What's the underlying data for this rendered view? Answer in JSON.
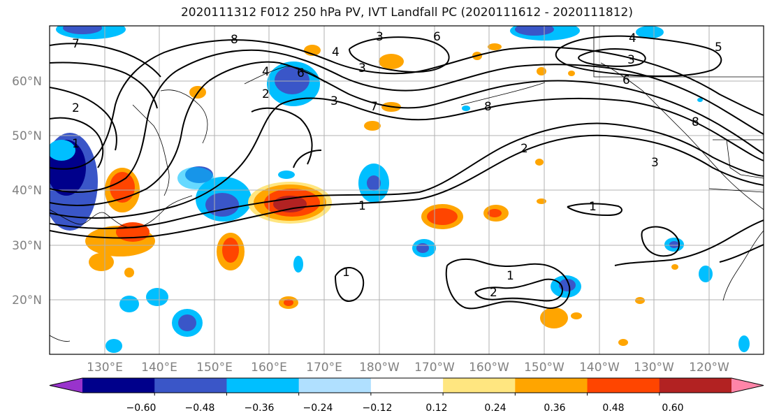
{
  "title": "2020111312 F012 250 hPa PV, IVT Landfall PC (2020111612 - 2020111812)",
  "map": {
    "projection": "equirectangular",
    "lon_range_deg_east": [
      120,
      250
    ],
    "lat_range": [
      10,
      70
    ],
    "lat_labels": [
      "20°N",
      "30°N",
      "40°N",
      "50°N",
      "60°N"
    ],
    "lon_labels": [
      "130°E",
      "140°E",
      "150°E",
      "160°E",
      "170°E",
      "180°W",
      "170°W",
      "160°W",
      "150°W",
      "140°W",
      "130°W",
      "120°W"
    ],
    "grid": true,
    "label_color": "#808080"
  },
  "colorbar": {
    "ticks": [
      "−0.60",
      "−0.48",
      "−0.36",
      "−0.24",
      "−0.12",
      "0.12",
      "0.24",
      "0.36",
      "0.48",
      "0.60"
    ],
    "colors": [
      "#9933cc",
      "#00008b",
      "#3a56c8",
      "#00bfff",
      "#b0e0ff",
      "#ffffff",
      "#ffe680",
      "#ffa500",
      "#ff4500",
      "#b22222",
      "#ff85a8"
    ],
    "extend": "both"
  },
  "contour_labels": {
    "one": "1",
    "two": "2",
    "three": "3",
    "four": "4",
    "five": "5",
    "six": "6",
    "seven": "7",
    "eight": "8"
  },
  "chart_data": {
    "type": "heatmap",
    "field": "250 hPa PV anomaly (shaded), IVT Landfall PC (contours)",
    "contour_levels": [
      1,
      2,
      3,
      4,
      5,
      6,
      7,
      8
    ],
    "shaded_levels": [
      -0.6,
      -0.48,
      -0.36,
      -0.24,
      -0.12,
      0.12,
      0.24,
      0.36,
      0.48,
      0.6
    ],
    "notable_features": [
      {
        "sign": "negative",
        "lon": 122,
        "lat": 43,
        "peak": -0.6
      },
      {
        "sign": "negative",
        "lon": 155,
        "lat": 38,
        "peak": -0.48
      },
      {
        "sign": "negative",
        "lon": 162,
        "lat": 59,
        "peak": -0.48
      },
      {
        "sign": "positive",
        "lon": 167,
        "lat": 38,
        "peak": 0.48
      },
      {
        "sign": "positive",
        "lon": 133,
        "lat": 40,
        "peak": 0.36
      },
      {
        "sign": "positive",
        "lon": 134,
        "lat": 32,
        "peak": 0.36
      },
      {
        "sign": "positive",
        "lon": 196,
        "lat": 35,
        "peak": 0.36
      }
    ]
  }
}
